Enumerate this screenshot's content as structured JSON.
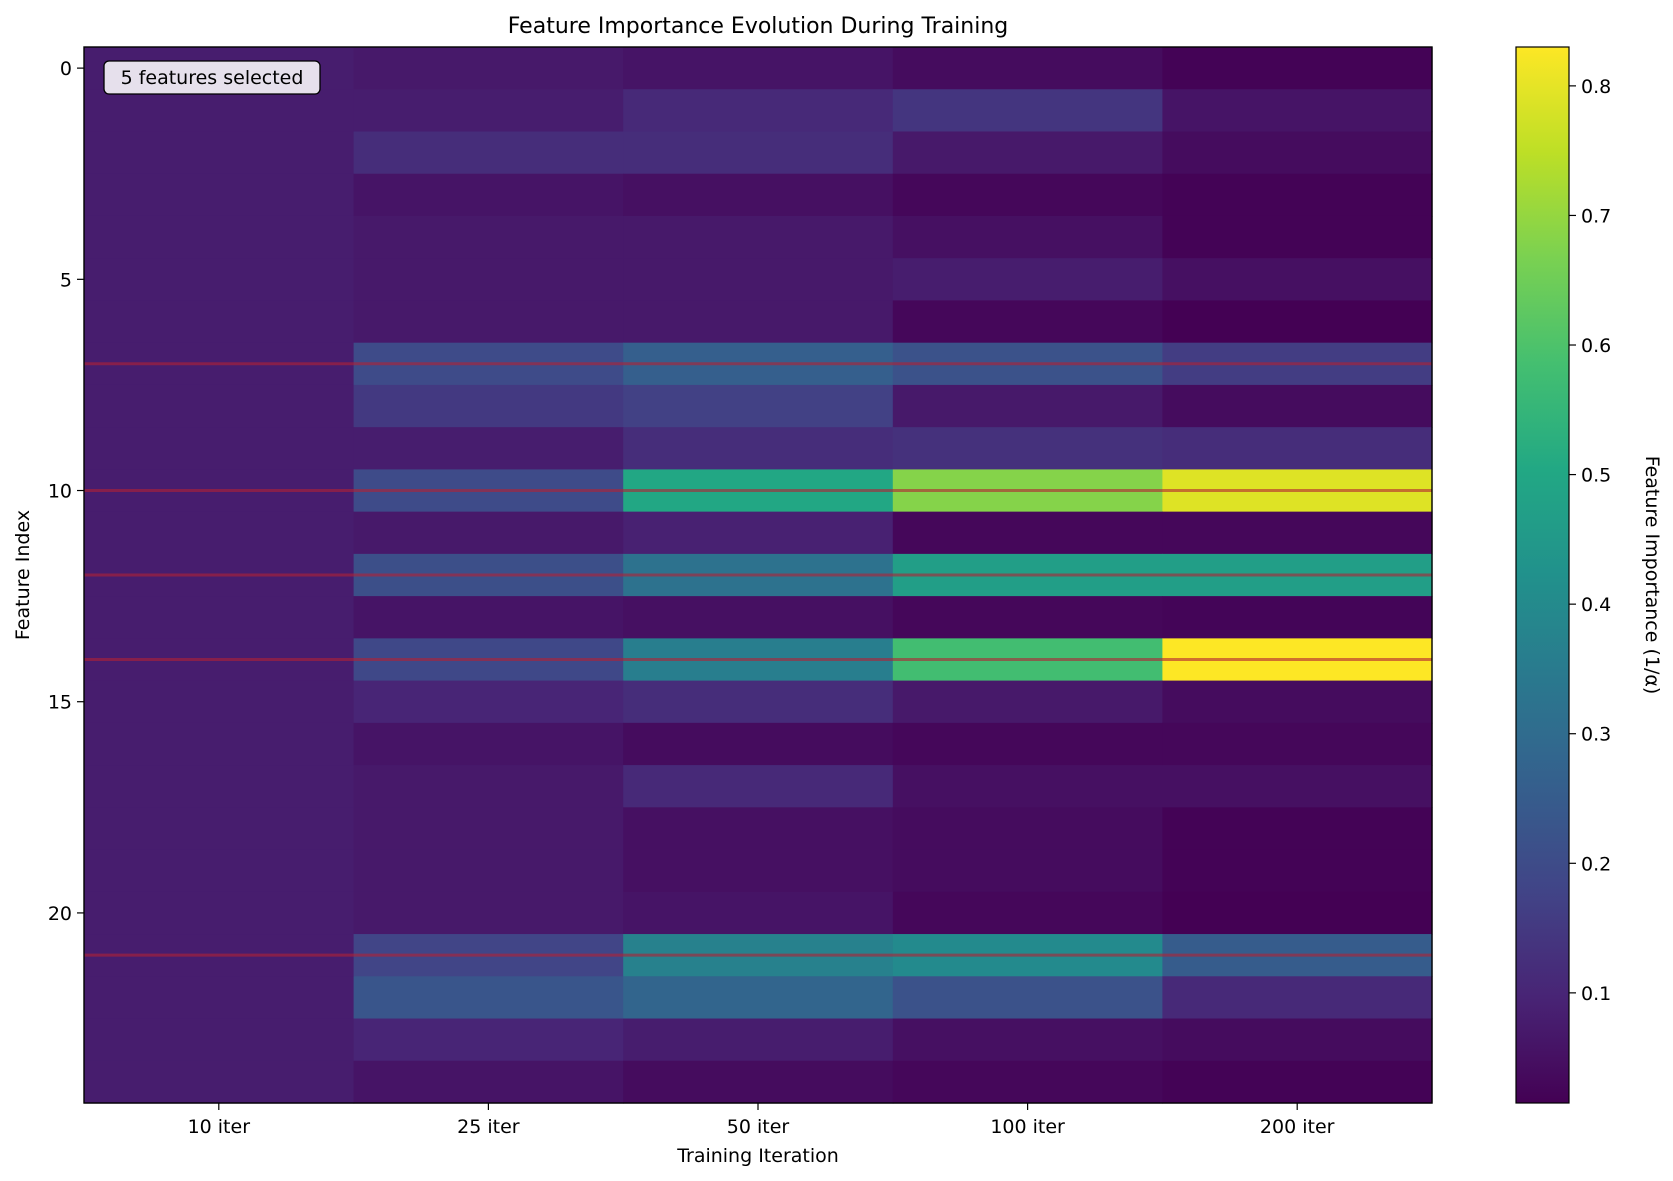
{
  "chart_data": {
    "type": "heatmap",
    "title": "Feature Importance Evolution During Training",
    "xlabel": "Training Iteration",
    "ylabel": "Feature Index",
    "x_categories": [
      "10 iter",
      "25 iter",
      "50 iter",
      "100 iter",
      "200 iter"
    ],
    "y_ticks": [
      0,
      5,
      10,
      15,
      20
    ],
    "n_features": 25,
    "values": [
      [
        0.08,
        0.07,
        0.06,
        0.04,
        0.02
      ],
      [
        0.08,
        0.08,
        0.11,
        0.14,
        0.06
      ],
      [
        0.08,
        0.12,
        0.12,
        0.07,
        0.04
      ],
      [
        0.08,
        0.06,
        0.05,
        0.03,
        0.02
      ],
      [
        0.08,
        0.07,
        0.07,
        0.05,
        0.02
      ],
      [
        0.08,
        0.07,
        0.07,
        0.08,
        0.05
      ],
      [
        0.08,
        0.07,
        0.07,
        0.03,
        0.015
      ],
      [
        0.08,
        0.2,
        0.26,
        0.22,
        0.16
      ],
      [
        0.08,
        0.15,
        0.17,
        0.07,
        0.04
      ],
      [
        0.08,
        0.08,
        0.12,
        0.13,
        0.12
      ],
      [
        0.08,
        0.2,
        0.5,
        0.68,
        0.79
      ],
      [
        0.08,
        0.07,
        0.09,
        0.03,
        0.03
      ],
      [
        0.08,
        0.21,
        0.32,
        0.47,
        0.47
      ],
      [
        0.08,
        0.06,
        0.05,
        0.03,
        0.025
      ],
      [
        0.08,
        0.19,
        0.36,
        0.58,
        0.83
      ],
      [
        0.08,
        0.1,
        0.12,
        0.07,
        0.04
      ],
      [
        0.08,
        0.06,
        0.04,
        0.03,
        0.03
      ],
      [
        0.08,
        0.07,
        0.11,
        0.05,
        0.05
      ],
      [
        0.08,
        0.07,
        0.05,
        0.04,
        0.02
      ],
      [
        0.08,
        0.07,
        0.05,
        0.04,
        0.02
      ],
      [
        0.08,
        0.07,
        0.06,
        0.03,
        0.015
      ],
      [
        0.08,
        0.18,
        0.37,
        0.4,
        0.25
      ],
      [
        0.08,
        0.23,
        0.28,
        0.22,
        0.11
      ],
      [
        0.08,
        0.1,
        0.08,
        0.05,
        0.04
      ],
      [
        0.08,
        0.06,
        0.04,
        0.03,
        0.02
      ]
    ],
    "selected_features": [
      7,
      10,
      12,
      14,
      21
    ],
    "annotation": "5 features selected",
    "colormap": "viridis",
    "colorbar": {
      "label": "Feature Importance (1/α)",
      "vmin": 0.015,
      "vmax": 0.83,
      "ticks": [
        0.1,
        0.2,
        0.3,
        0.4,
        0.5,
        0.6,
        0.7,
        0.8
      ]
    },
    "highlight_color": "#b22234",
    "grid": false
  }
}
